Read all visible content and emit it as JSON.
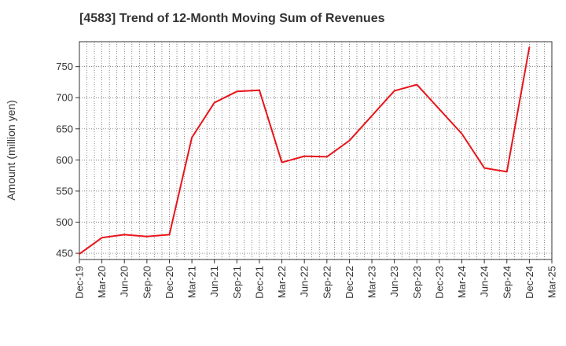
{
  "chart_data": {
    "type": "line",
    "title": "[4583]  Trend of 12-Month Moving Sum of Revenues",
    "xlabel": "",
    "ylabel": "Amount (million yen)",
    "ylim": [
      440,
      790
    ],
    "yticks": [
      450,
      500,
      550,
      600,
      650,
      700,
      750
    ],
    "categories": [
      "Dec-19",
      "Mar-20",
      "Jun-20",
      "Sep-20",
      "Dec-20",
      "Mar-21",
      "Jun-21",
      "Sep-21",
      "Dec-21",
      "Mar-22",
      "Jun-22",
      "Sep-22",
      "Dec-22",
      "Mar-23",
      "Jun-23",
      "Sep-23",
      "Dec-23",
      "Mar-24",
      "Jun-24",
      "Sep-24",
      "Dec-24",
      "Mar-25"
    ],
    "series": [
      {
        "color": "#e8141b",
        "values": [
          449,
          475,
          480,
          477,
          480,
          636,
          692,
          710,
          712,
          596,
          606,
          605,
          631,
          671,
          711,
          721,
          null,
          642,
          587,
          581,
          781,
          null
        ]
      }
    ],
    "grid": true,
    "grid_style": "dotted"
  }
}
